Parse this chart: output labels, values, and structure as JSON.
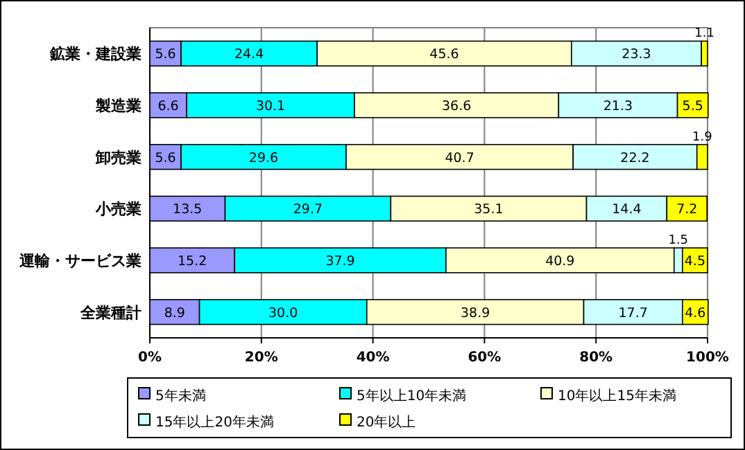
{
  "chart_data": {
    "type": "bar",
    "orientation": "horizontal",
    "stacked": true,
    "categories": [
      "鉱業・建設業",
      "製造業",
      "卸売業",
      "小売業",
      "運輸・サービス業",
      "全業種計"
    ],
    "series": [
      {
        "name": "5年未満",
        "color": "#9999ff",
        "values": [
          5.6,
          6.6,
          5.6,
          13.5,
          15.2,
          8.9
        ],
        "value_labels": [
          "5.6",
          "6.6",
          "5.6",
          "13.5",
          "15.2",
          "8.9"
        ]
      },
      {
        "name": "5年以上10年未満",
        "color": "#00ffff",
        "values": [
          24.4,
          30.1,
          29.6,
          29.7,
          37.9,
          30.0
        ],
        "value_labels": [
          "24.4",
          "30.1",
          "29.6",
          "29.7",
          "37.9",
          "30.0"
        ]
      },
      {
        "name": "10年以上15年未満",
        "color": "#ffffcc",
        "values": [
          45.6,
          36.6,
          40.7,
          35.1,
          40.9,
          38.9
        ],
        "value_labels": [
          "45.6",
          "36.6",
          "40.7",
          "35.1",
          "40.9",
          "38.9"
        ]
      },
      {
        "name": "15年以上20年未満",
        "color": "#ccffff",
        "values": [
          23.3,
          21.3,
          22.2,
          14.4,
          1.5,
          17.7
        ],
        "value_labels": [
          "23.3",
          "21.3",
          "22.2",
          "14.4",
          "1.5",
          "17.7"
        ]
      },
      {
        "name": "20年以上",
        "color": "#ffff00",
        "values": [
          1.1,
          5.5,
          1.9,
          7.2,
          4.5,
          4.6
        ],
        "value_labels": [
          "1.1",
          "5.5",
          "1.9",
          "7.2",
          "4.5",
          "4.6"
        ]
      }
    ],
    "xlim": [
      0,
      100
    ],
    "xticks": [
      {
        "value": 0,
        "label": "0%"
      },
      {
        "value": 20,
        "label": "20%"
      },
      {
        "value": 40,
        "label": "40%"
      },
      {
        "value": 60,
        "label": "60%"
      },
      {
        "value": 80,
        "label": "80%"
      },
      {
        "value": 100,
        "label": "100%"
      }
    ],
    "grid": "x",
    "legend": "bottom"
  }
}
